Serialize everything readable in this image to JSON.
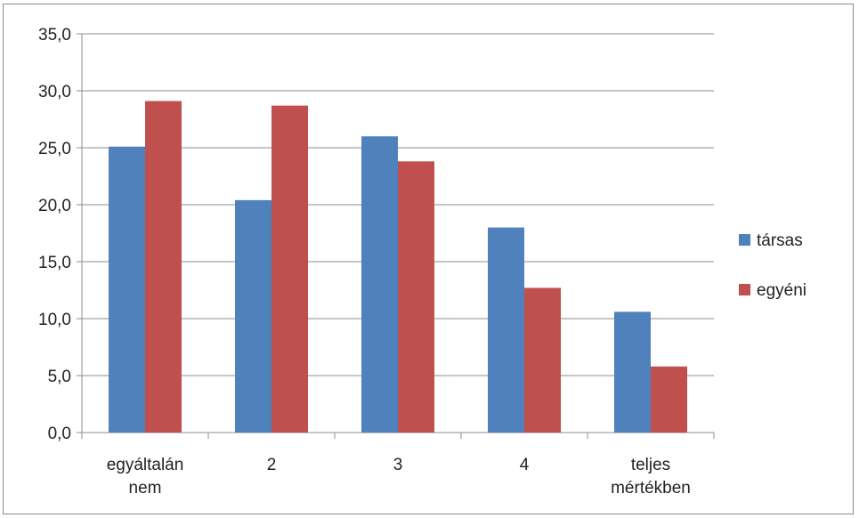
{
  "chart_data": {
    "type": "bar",
    "categories": [
      [
        "egyáltalán",
        "nem"
      ],
      [
        "2"
      ],
      [
        "3"
      ],
      [
        "4"
      ],
      [
        "teljes",
        "mértékben"
      ]
    ],
    "series": [
      {
        "name": "társas",
        "color": "#4F81BD",
        "values": [
          25.1,
          20.4,
          26.0,
          18.0,
          10.6
        ]
      },
      {
        "name": "egyéni",
        "color": "#C0504D",
        "values": [
          29.1,
          28.7,
          23.8,
          12.7,
          5.8
        ]
      }
    ],
    "ylim": [
      0,
      35
    ],
    "yticks": [
      "0,0",
      "5,0",
      "10,0",
      "15,0",
      "20,0",
      "25,0",
      "30,0",
      "35,0"
    ],
    "ytick_values": [
      0,
      5,
      10,
      15,
      20,
      25,
      30,
      35
    ],
    "grid": true,
    "legend_position": "right",
    "title": "",
    "xlabel": "",
    "ylabel": ""
  }
}
